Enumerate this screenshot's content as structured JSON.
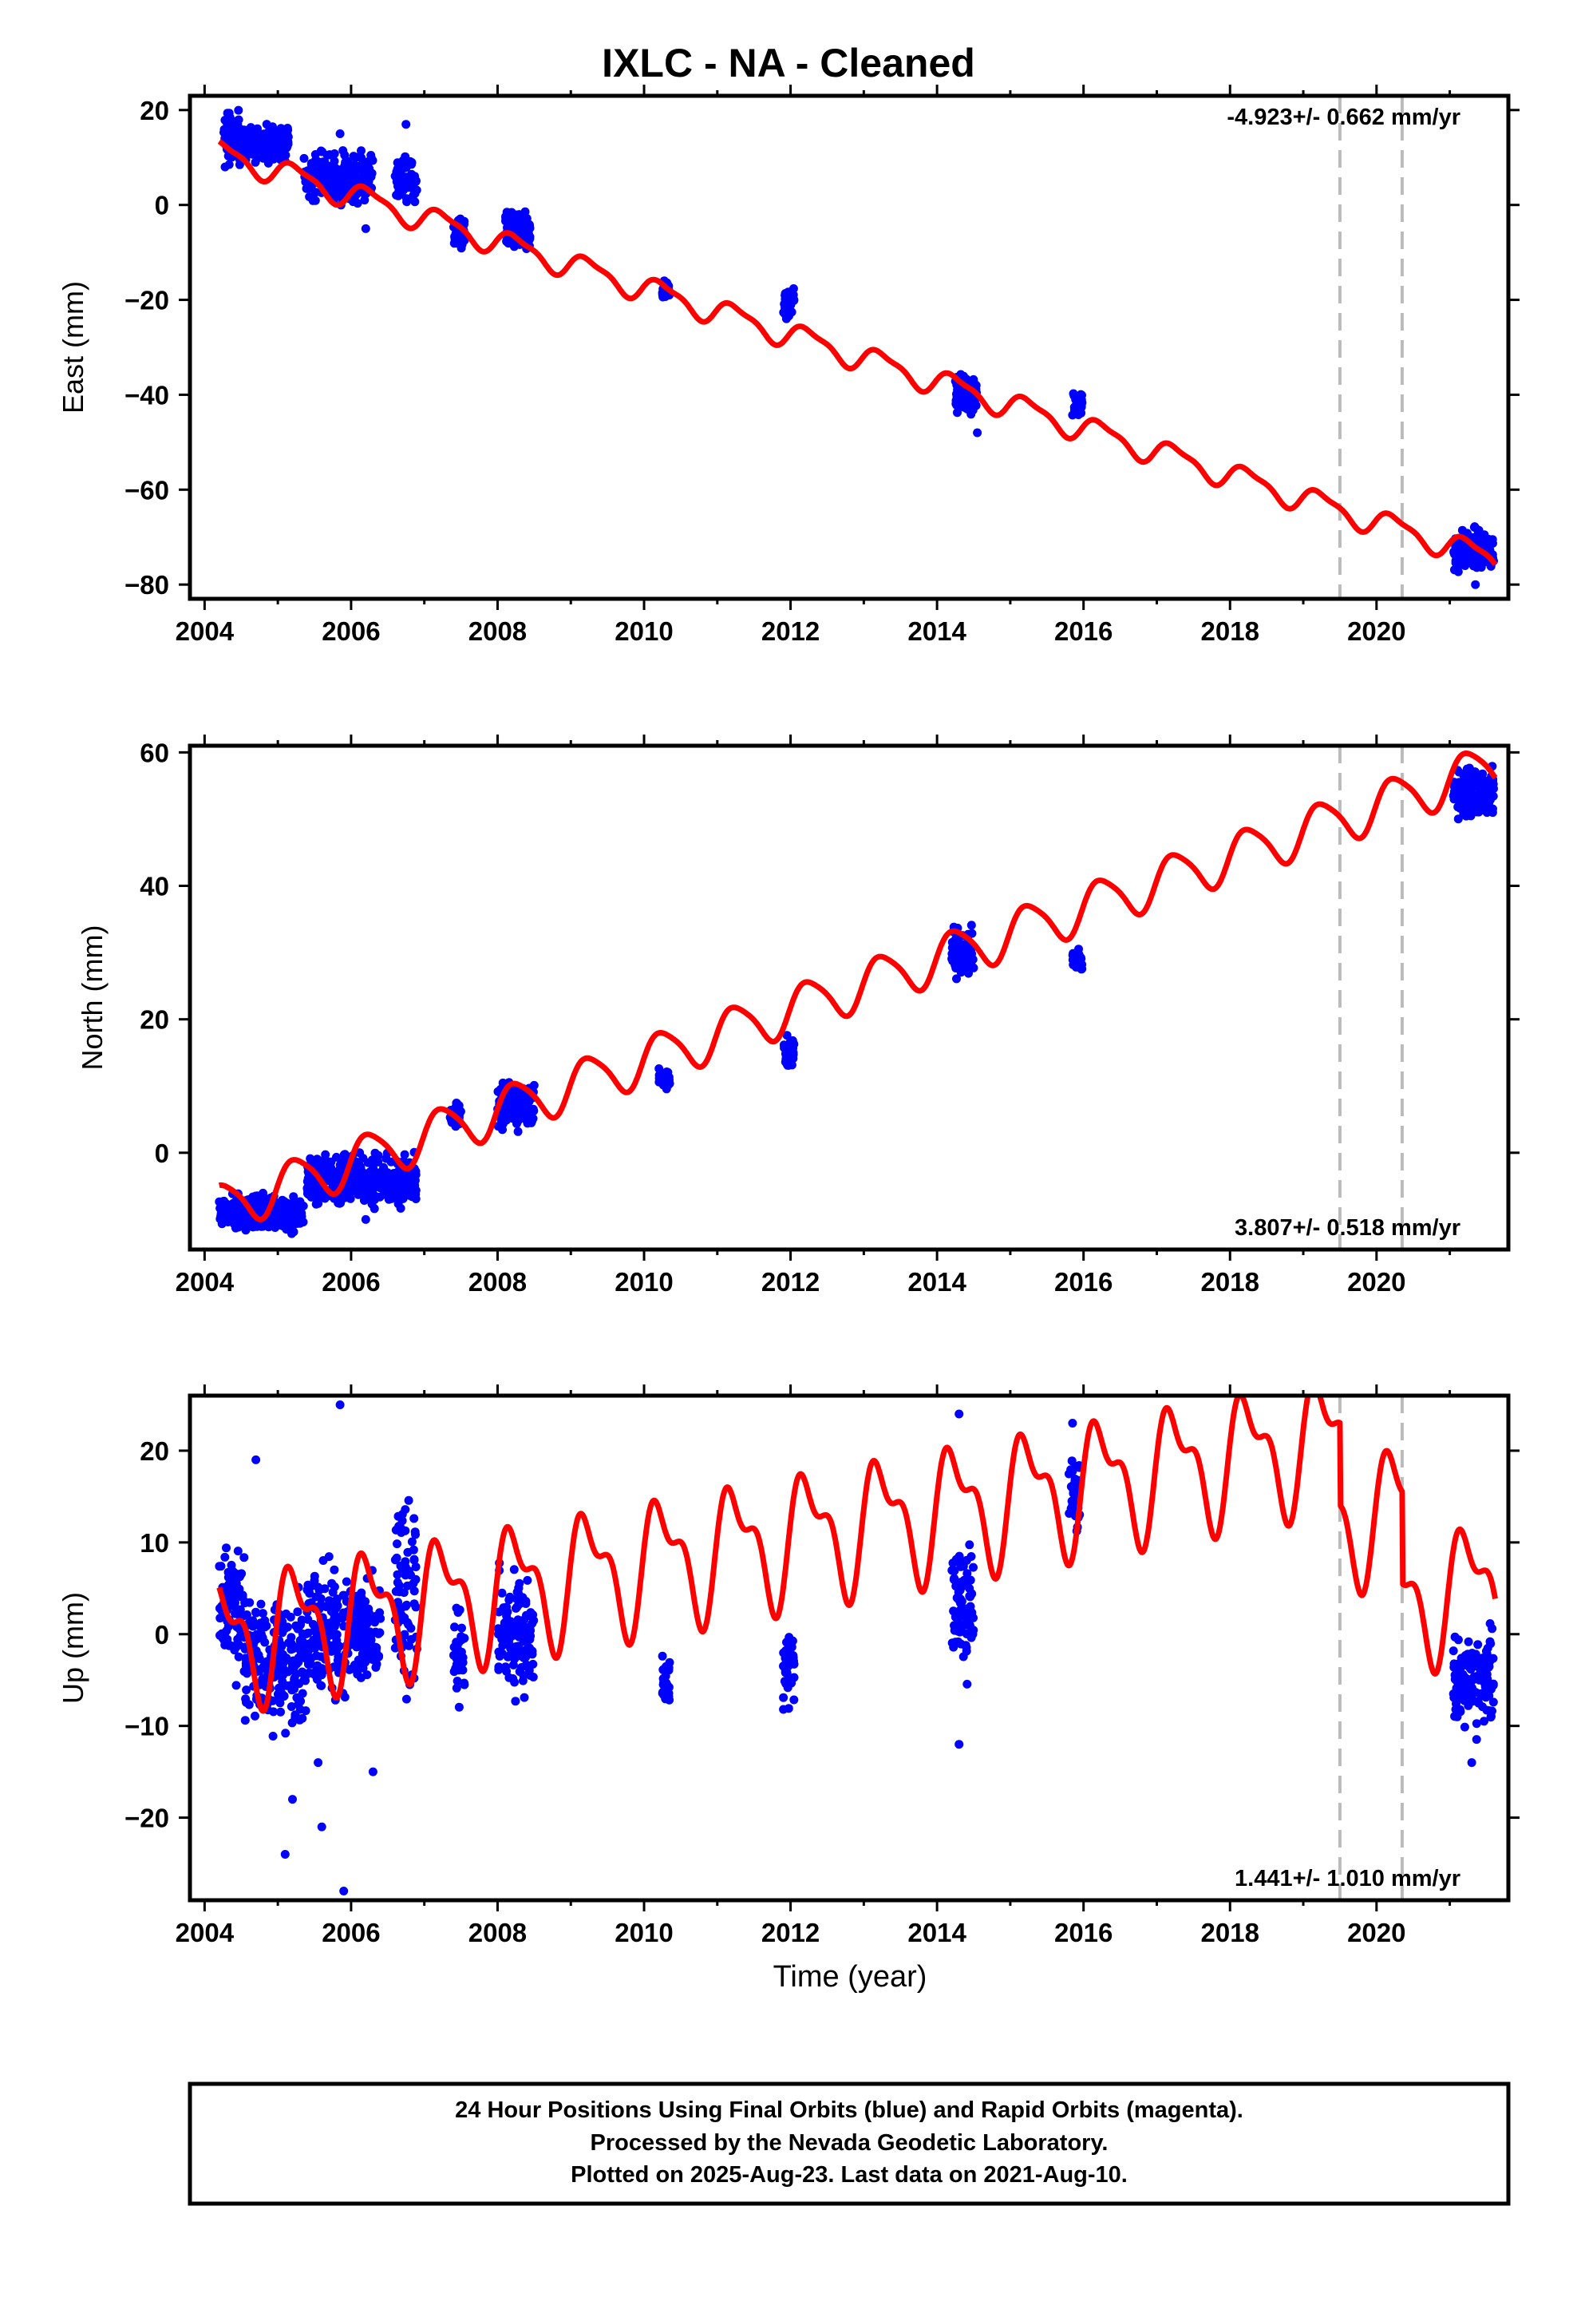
{
  "title": "IXLC  - NA - Cleaned",
  "colors": {
    "data": "#0000ff",
    "model": "#ff0000",
    "event_line": "#bbbbbb",
    "axes": "#000000"
  },
  "x_axis_label": "Time (year)",
  "footer": {
    "lines": [
      "24 Hour Positions Using Final Orbits (blue) and Rapid Orbits (magenta).",
      "Processed by the Nevada Geodetic Laboratory.",
      "Plotted on 2025-Aug-23. Last data on 2021-Aug-10."
    ]
  },
  "chart_data": [
    {
      "type": "scatter",
      "component": "east",
      "ylabel": "East (mm)",
      "xlim": [
        2003.8,
        2021.8
      ],
      "ylim": [
        -83,
        23
      ],
      "xticks": [
        2004,
        2006,
        2008,
        2010,
        2012,
        2014,
        2016,
        2018,
        2020
      ],
      "yticks": [
        -80,
        -60,
        -40,
        -20,
        0,
        20
      ],
      "rate_label": "-4.923+/- 0.662 mm/yr",
      "rate_position": "top-right",
      "event_lines_x": [
        2019.5,
        2020.35
      ],
      "model": {
        "intercept_2004": 12.0,
        "rate": -4.923,
        "annual_amplitude": 2.5,
        "semiannual_amplitude": 0.8,
        "offsets": []
      },
      "data_clusters": [
        {
          "x_start": 2004.25,
          "x_end": 2004.55,
          "y_center": 14,
          "y_spread": 8
        },
        {
          "x_start": 2004.55,
          "x_end": 2005.15,
          "y_center": 13,
          "y_spread": 5
        },
        {
          "x_start": 2005.35,
          "x_end": 2006.3,
          "y_center": 6,
          "y_spread": 7
        },
        {
          "x_start": 2006.6,
          "x_end": 2006.9,
          "y_center": 5,
          "y_spread": 6
        },
        {
          "x_start": 2007.4,
          "x_end": 2007.55,
          "y_center": -6,
          "y_spread": 5
        },
        {
          "x_start": 2008.1,
          "x_end": 2008.45,
          "y_center": -6,
          "y_spread": 6
        },
        {
          "x_start": 2010.25,
          "x_end": 2010.35,
          "y_center": -18,
          "y_spread": 3
        },
        {
          "x_start": 2011.9,
          "x_end": 2012.05,
          "y_center": -21,
          "y_spread": 5
        },
        {
          "x_start": 2014.25,
          "x_end": 2014.55,
          "y_center": -40,
          "y_spread": 6
        },
        {
          "x_start": 2015.85,
          "x_end": 2015.98,
          "y_center": -42,
          "y_spread": 4
        },
        {
          "x_start": 2021.05,
          "x_end": 2021.6,
          "y_center": -73,
          "y_spread": 6
        }
      ],
      "outliers": [
        [
          2006.75,
          17
        ],
        [
          2005.85,
          15
        ],
        [
          2006.2,
          -5
        ],
        [
          2014.55,
          -48
        ],
        [
          2021.35,
          -80
        ]
      ]
    },
    {
      "type": "scatter",
      "component": "north",
      "ylabel": "North (mm)",
      "xlim": [
        2003.8,
        2021.8
      ],
      "ylim": [
        -14.5,
        61
      ],
      "xticks": [
        2004,
        2006,
        2008,
        2010,
        2012,
        2014,
        2016,
        2018,
        2020
      ],
      "yticks": [
        0,
        20,
        40,
        60
      ],
      "rate_label": "3.807+/- 0.518 mm/yr",
      "rate_position": "bottom-right",
      "event_lines_x": [
        2019.5,
        2020.35
      ],
      "model": {
        "intercept_2004": -9.0,
        "rate": 3.807,
        "annual_amplitude": 3.5,
        "semiannual_amplitude": 0.6,
        "offsets": []
      },
      "data_clusters": [
        {
          "x_start": 2004.2,
          "x_end": 2005.35,
          "y_center": -9,
          "y_spread": 4
        },
        {
          "x_start": 2005.4,
          "x_end": 2006.9,
          "y_center": -4,
          "y_spread": 5
        },
        {
          "x_start": 2007.35,
          "x_end": 2007.5,
          "y_center": 6,
          "y_spread": 3
        },
        {
          "x_start": 2008.0,
          "x_end": 2008.5,
          "y_center": 7,
          "y_spread": 5
        },
        {
          "x_start": 2010.2,
          "x_end": 2010.35,
          "y_center": 11,
          "y_spread": 2
        },
        {
          "x_start": 2011.9,
          "x_end": 2012.05,
          "y_center": 15,
          "y_spread": 3
        },
        {
          "x_start": 2014.2,
          "x_end": 2014.5,
          "y_center": 30,
          "y_spread": 5
        },
        {
          "x_start": 2015.85,
          "x_end": 2015.98,
          "y_center": 29,
          "y_spread": 3
        },
        {
          "x_start": 2021.05,
          "x_end": 2021.6,
          "y_center": 54,
          "y_spread": 5
        }
      ],
      "outliers": [
        [
          2006.2,
          -10
        ],
        [
          2006.85,
          -5
        ]
      ]
    },
    {
      "type": "scatter",
      "component": "up",
      "ylabel": "Up (mm)",
      "xlim": [
        2003.8,
        2021.8
      ],
      "ylim": [
        -29,
        26
      ],
      "xticks": [
        2004,
        2006,
        2008,
        2010,
        2012,
        2014,
        2016,
        2018,
        2020
      ],
      "yticks": [
        -20,
        -10,
        0,
        10,
        20
      ],
      "rate_label": "1.441+/- 1.010 mm/yr",
      "rate_position": "bottom-right",
      "event_lines_x": [
        2019.5,
        2020.35
      ],
      "model": {
        "intercept_2004": -1.0,
        "rate": 1.441,
        "annual_amplitude": 6.0,
        "semiannual_amplitude": 3.0,
        "offsets": [
          [
            2019.5,
            -9
          ],
          [
            2020.35,
            -10
          ]
        ]
      },
      "data_clusters": [
        {
          "x_start": 2004.2,
          "x_end": 2004.55,
          "y_center": 3,
          "y_spread": 10
        },
        {
          "x_start": 2004.55,
          "x_end": 2005.4,
          "y_center": -3,
          "y_spread": 10
        },
        {
          "x_start": 2005.4,
          "x_end": 2006.0,
          "y_center": 0,
          "y_spread": 10
        },
        {
          "x_start": 2006.0,
          "x_end": 2006.4,
          "y_center": 0,
          "y_spread": 8
        },
        {
          "x_start": 2006.6,
          "x_end": 2006.9,
          "y_center": 5,
          "y_spread": 14
        },
        {
          "x_start": 2007.4,
          "x_end": 2007.55,
          "y_center": -2,
          "y_spread": 8
        },
        {
          "x_start": 2008.0,
          "x_end": 2008.5,
          "y_center": 0,
          "y_spread": 9
        },
        {
          "x_start": 2010.25,
          "x_end": 2010.35,
          "y_center": -5,
          "y_spread": 3
        },
        {
          "x_start": 2011.9,
          "x_end": 2012.05,
          "y_center": -4,
          "y_spread": 5
        },
        {
          "x_start": 2014.2,
          "x_end": 2014.5,
          "y_center": 3,
          "y_spread": 9
        },
        {
          "x_start": 2015.8,
          "x_end": 2015.95,
          "y_center": 15,
          "y_spread": 6
        },
        {
          "x_start": 2021.05,
          "x_end": 2021.6,
          "y_center": -5,
          "y_spread": 7
        }
      ],
      "outliers": [
        [
          2005.85,
          25
        ],
        [
          2005.9,
          -28
        ],
        [
          2005.1,
          -24
        ],
        [
          2005.6,
          -21
        ],
        [
          2005.2,
          -18
        ],
        [
          2006.3,
          -15
        ],
        [
          2014.3,
          24
        ],
        [
          2014.3,
          -12
        ],
        [
          2015.85,
          23
        ],
        [
          2021.3,
          -14
        ],
        [
          2004.7,
          19
        ],
        [
          2005.55,
          -14
        ]
      ]
    }
  ]
}
